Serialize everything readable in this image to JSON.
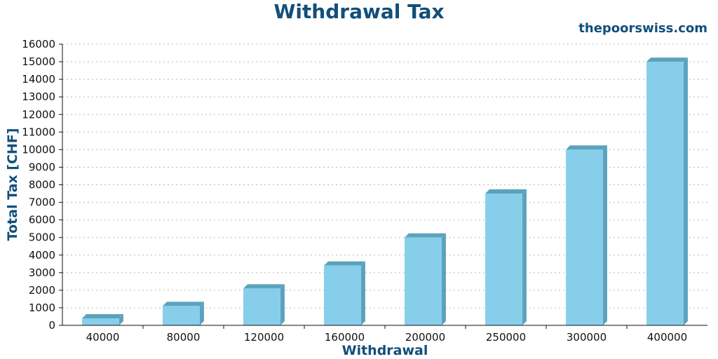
{
  "chart_data": {
    "type": "bar",
    "title": "Withdrawal Tax",
    "watermark": "thepoorswiss.com",
    "xlabel": "Withdrawal",
    "ylabel": "Total Tax [CHF]",
    "categories": [
      "40000",
      "80000",
      "120000",
      "160000",
      "200000",
      "250000",
      "300000",
      "400000"
    ],
    "values": [
      400,
      1100,
      2100,
      3400,
      5000,
      7500,
      10000,
      15000
    ],
    "ylim": [
      0,
      16000
    ],
    "yticks": [
      "0",
      "1000",
      "2000",
      "3000",
      "4000",
      "5000",
      "6000",
      "7000",
      "8000",
      "9000",
      "10000",
      "11000",
      "12000",
      "13000",
      "14000",
      "15000",
      "16000"
    ],
    "grid": true,
    "colors": {
      "bar_front": "#87ceeb",
      "bar_side": "#5ba3bd",
      "bar_top": "#5ba3bd",
      "text": "#124f7a"
    }
  }
}
